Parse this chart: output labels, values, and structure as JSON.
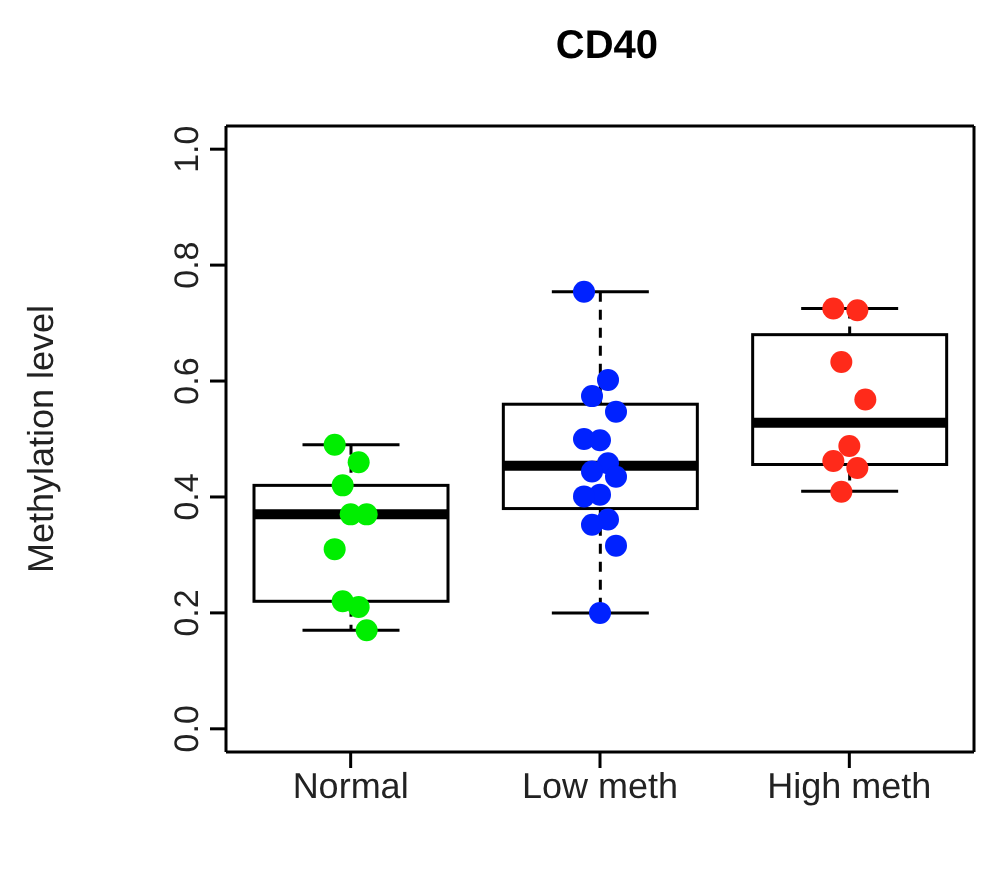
{
  "chart_data": {
    "type": "box",
    "title": "CD40",
    "ylabel": "Methylation level",
    "categories": [
      "Normal",
      "Low meth",
      "High meth"
    ],
    "boxes": [
      {
        "low": 0.17,
        "q1": 0.22,
        "median": 0.37,
        "q3": 0.42,
        "high": 0.49
      },
      {
        "low": 0.2,
        "q1": 0.38,
        "median": 0.454,
        "q3": 0.56,
        "high": 0.754
      },
      {
        "low": 0.41,
        "q1": 0.456,
        "median": 0.528,
        "q3": 0.68,
        "high": 0.725
      }
    ],
    "ylim": [
      -0.04,
      1.04
    ],
    "yticks": [
      {
        "value": 0,
        "label": "0.0"
      },
      {
        "value": 0.2,
        "label": "0.2"
      },
      {
        "value": 0.4,
        "label": "0.4"
      },
      {
        "value": 0.6,
        "label": "0.6"
      },
      {
        "value": 0.8,
        "label": "0.8"
      },
      {
        "value": 1,
        "label": "1.0"
      }
    ],
    "grid": false,
    "legend": false,
    "marker": "circle",
    "series": [
      {
        "type": "scatter",
        "color": "#00ee00",
        "x": [
          "Normal",
          "Normal",
          "Normal",
          "Normal",
          "Normal",
          "Normal",
          "Normal",
          "Normal",
          "Normal"
        ],
        "values": [
          0.49,
          0.46,
          0.42,
          0.37,
          0.37,
          0.31,
          0.21,
          0.22,
          0.17
        ]
      },
      {
        "type": "scatter",
        "color": "#0022ff",
        "x": [
          "Low meth",
          "Low meth",
          "Low meth",
          "Low meth",
          "Low meth",
          "Low meth",
          "Low meth",
          "Low meth",
          "Low meth",
          "Low meth",
          "Low meth",
          "Low meth",
          "Low meth",
          "Low meth",
          "Low meth"
        ],
        "values": [
          0.754,
          0.602,
          0.574,
          0.547,
          0.498,
          0.5,
          0.458,
          0.444,
          0.435,
          0.404,
          0.401,
          0.361,
          0.352,
          0.316,
          0.2
        ]
      },
      {
        "type": "scatter",
        "color": "#ff2a1a",
        "x": [
          "High meth",
          "High meth",
          "High meth",
          "High meth",
          "High meth",
          "High meth",
          "High meth",
          "High meth"
        ],
        "values": [
          0.725,
          0.722,
          0.633,
          0.568,
          0.488,
          0.462,
          0.45,
          0.409
        ]
      }
    ]
  }
}
